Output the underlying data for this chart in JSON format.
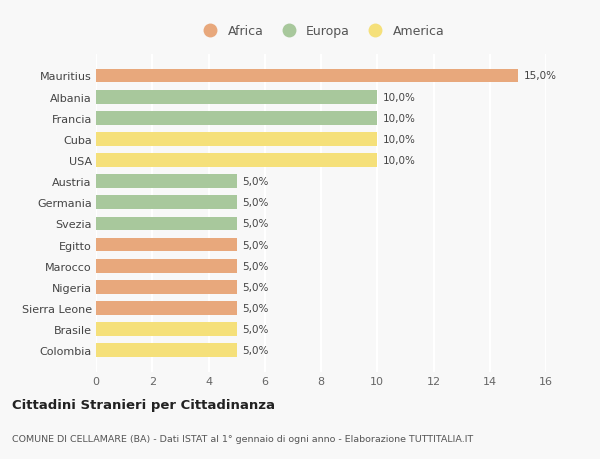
{
  "countries": [
    "Colombia",
    "Brasile",
    "Sierra Leone",
    "Nigeria",
    "Marocco",
    "Egitto",
    "Svezia",
    "Germania",
    "Austria",
    "USA",
    "Cuba",
    "Francia",
    "Albania",
    "Mauritius"
  ],
  "values": [
    5.0,
    5.0,
    5.0,
    5.0,
    5.0,
    5.0,
    5.0,
    5.0,
    5.0,
    10.0,
    10.0,
    10.0,
    10.0,
    15.0
  ],
  "categories": [
    "America",
    "America",
    "Africa",
    "Africa",
    "Africa",
    "Africa",
    "Europa",
    "Europa",
    "Europa",
    "America",
    "America",
    "Europa",
    "Europa",
    "Africa"
  ],
  "colors": {
    "Africa": "#E8A87C",
    "Europa": "#A8C89C",
    "America": "#F5E07A"
  },
  "legend_order": [
    "Africa",
    "Europa",
    "America"
  ],
  "legend_colors": [
    "#E8A87C",
    "#A8C89C",
    "#F5E07A"
  ],
  "xlim": [
    0,
    16
  ],
  "xticks": [
    0,
    2,
    4,
    6,
    8,
    10,
    12,
    14,
    16
  ],
  "title": "Cittadini Stranieri per Cittadinanza",
  "subtitle": "COMUNE DI CELLAMARE (BA) - Dati ISTAT al 1° gennaio di ogni anno - Elaborazione TUTTITALIA.IT",
  "background_color": "#F8F8F8",
  "grid_color": "#FFFFFF",
  "bar_height": 0.65
}
